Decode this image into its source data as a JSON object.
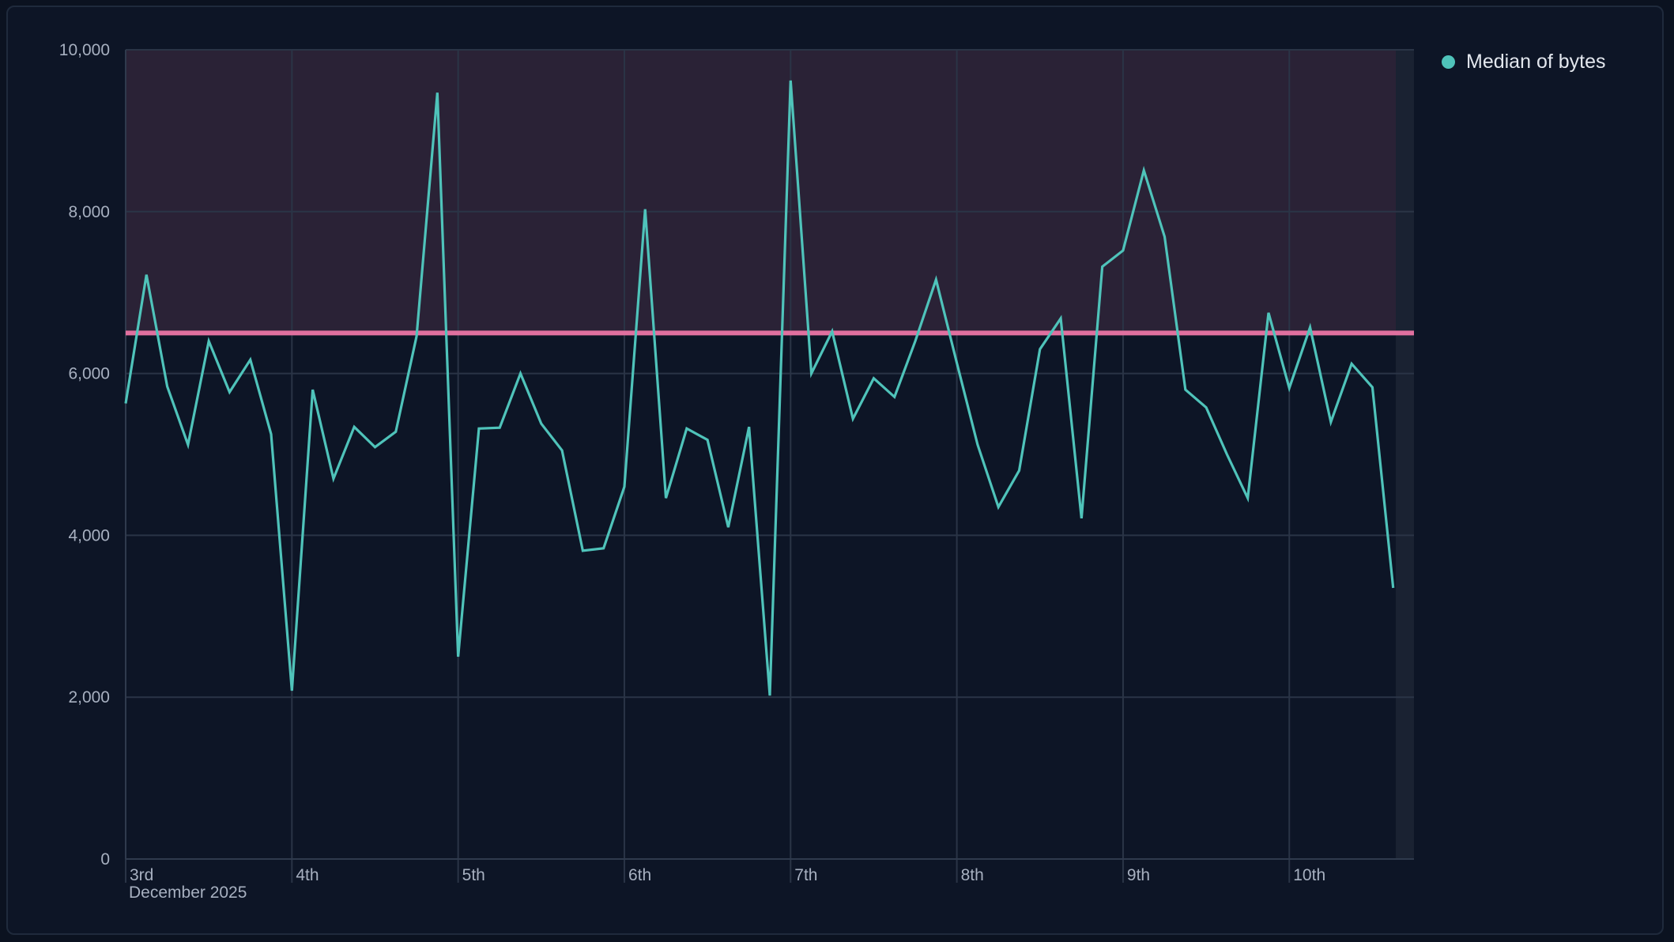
{
  "chart_data": {
    "type": "line",
    "title": "",
    "xlabel": "",
    "ylabel": "",
    "ylim": [
      0,
      10000
    ],
    "xlim": [
      "2025-12-03T00:00",
      "2025-12-10T18:00"
    ],
    "yticks": [
      0,
      2000,
      4000,
      6000,
      8000,
      10000
    ],
    "ytick_labels": [
      "0",
      "2,000",
      "4,000",
      "6,000",
      "8,000",
      "10,000"
    ],
    "xticks": [
      "2025-12-03",
      "2025-12-04",
      "2025-12-05",
      "2025-12-06",
      "2025-12-07",
      "2025-12-08",
      "2025-12-09",
      "2025-12-10"
    ],
    "xtick_labels": [
      "3rd",
      "4th",
      "5th",
      "6th",
      "7th",
      "8th",
      "9th",
      "10th"
    ],
    "x_sublabel": "December 2025",
    "grid": true,
    "legend_position": "top-right",
    "threshold": {
      "value": 6500,
      "color": "#e0709f",
      "shade_above_color": "#2a2236"
    },
    "series": [
      {
        "name": "Median of bytes",
        "color": "#4fc3ba",
        "start": "2025-12-03T00:00",
        "interval_hours": 3,
        "values": [
          5630,
          7220,
          5840,
          5120,
          6400,
          5770,
          6170,
          5250,
          2080,
          5800,
          4700,
          5340,
          5090,
          5280,
          6460,
          9470,
          2500,
          5320,
          5330,
          6000,
          5380,
          5050,
          3810,
          3840,
          4600,
          8030,
          4460,
          5320,
          5180,
          4100,
          5340,
          2020,
          9620,
          6000,
          6520,
          5440,
          5940,
          5710,
          6400,
          7160,
          6130,
          5120,
          4350,
          4800,
          6300,
          6680,
          4210,
          7320,
          7520,
          8510,
          7690,
          5800,
          5580,
          5000,
          4460,
          6750,
          5820,
          6570,
          5400,
          6120,
          5830,
          3350
        ]
      }
    ]
  }
}
